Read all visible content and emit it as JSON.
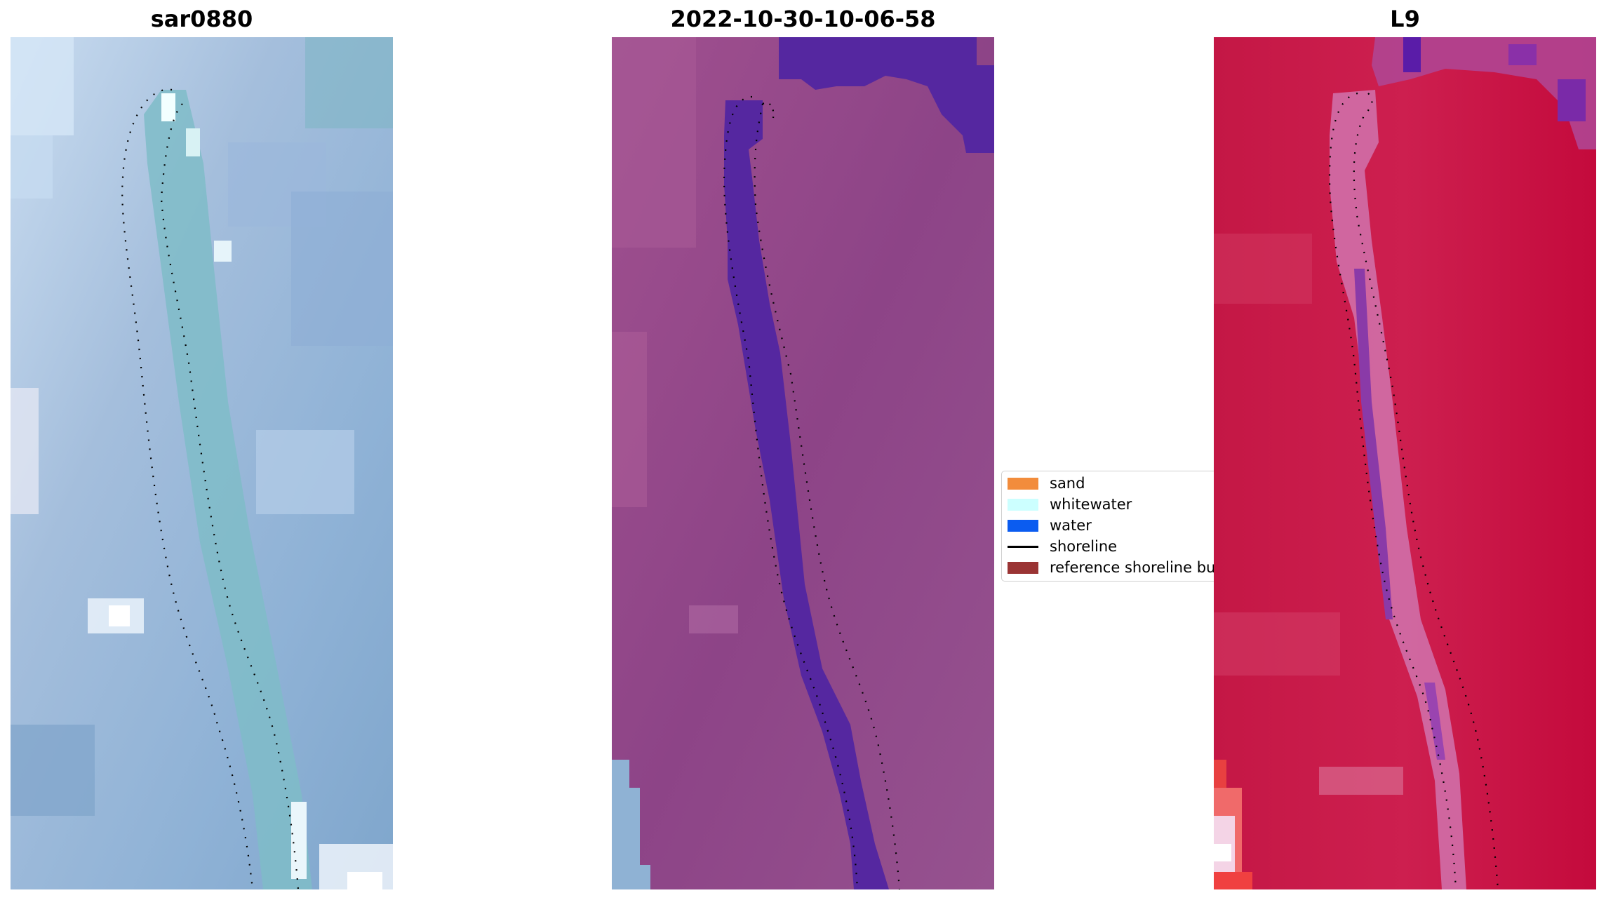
{
  "panels": [
    {
      "title": "sar0880",
      "image": "sar-false-color-image"
    },
    {
      "title": "2022-10-30-10-06-58",
      "image": "classified-image"
    },
    {
      "title": "L9",
      "image": "landsat-9-index-image"
    }
  ],
  "legend": {
    "items": [
      {
        "label": "sand",
        "color": "#f28c3c",
        "kind": "patch"
      },
      {
        "label": "whitewater",
        "color": "#ccffff",
        "kind": "patch"
      },
      {
        "label": "water",
        "color": "#0b5cf0",
        "kind": "patch"
      },
      {
        "label": "shoreline",
        "color": "#000000",
        "kind": "line"
      },
      {
        "label": "reference shoreline buffer",
        "color": "#9a3434",
        "kind": "patch"
      }
    ]
  }
}
